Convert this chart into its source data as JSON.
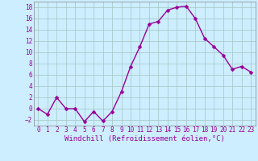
{
  "x": [
    0,
    1,
    2,
    3,
    4,
    5,
    6,
    7,
    8,
    9,
    10,
    11,
    12,
    13,
    14,
    15,
    16,
    17,
    18,
    19,
    20,
    21,
    22,
    23
  ],
  "y": [
    0,
    -1,
    2,
    0,
    0,
    -2.3,
    -0.5,
    -2.2,
    -0.5,
    3,
    7.5,
    11,
    15,
    15.5,
    17.5,
    18,
    18.2,
    16,
    12.5,
    11,
    9.5,
    7,
    7.5,
    6.5
  ],
  "line_color": "#990099",
  "marker_color": "#990099",
  "bg_color": "#cceeff",
  "grid_color": "#aacccc",
  "xlabel": "Windchill (Refroidissement éolien,°C)",
  "xlim": [
    -0.5,
    23.5
  ],
  "ylim": [
    -3,
    19
  ],
  "yticks": [
    -2,
    0,
    2,
    4,
    6,
    8,
    10,
    12,
    14,
    16,
    18
  ],
  "xticks": [
    0,
    1,
    2,
    3,
    4,
    5,
    6,
    7,
    8,
    9,
    10,
    11,
    12,
    13,
    14,
    15,
    16,
    17,
    18,
    19,
    20,
    21,
    22,
    23
  ],
  "xtick_labels": [
    "0",
    "1",
    "2",
    "3",
    "4",
    "5",
    "6",
    "7",
    "8",
    "9",
    "10",
    "11",
    "12",
    "13",
    "14",
    "15",
    "16",
    "17",
    "18",
    "19",
    "20",
    "21",
    "22",
    "23"
  ],
  "tick_fontsize": 5.5,
  "xlabel_fontsize": 6.5,
  "marker_size": 2.5,
  "line_width": 1.0,
  "tick_color": "#990099",
  "label_color": "#990099"
}
